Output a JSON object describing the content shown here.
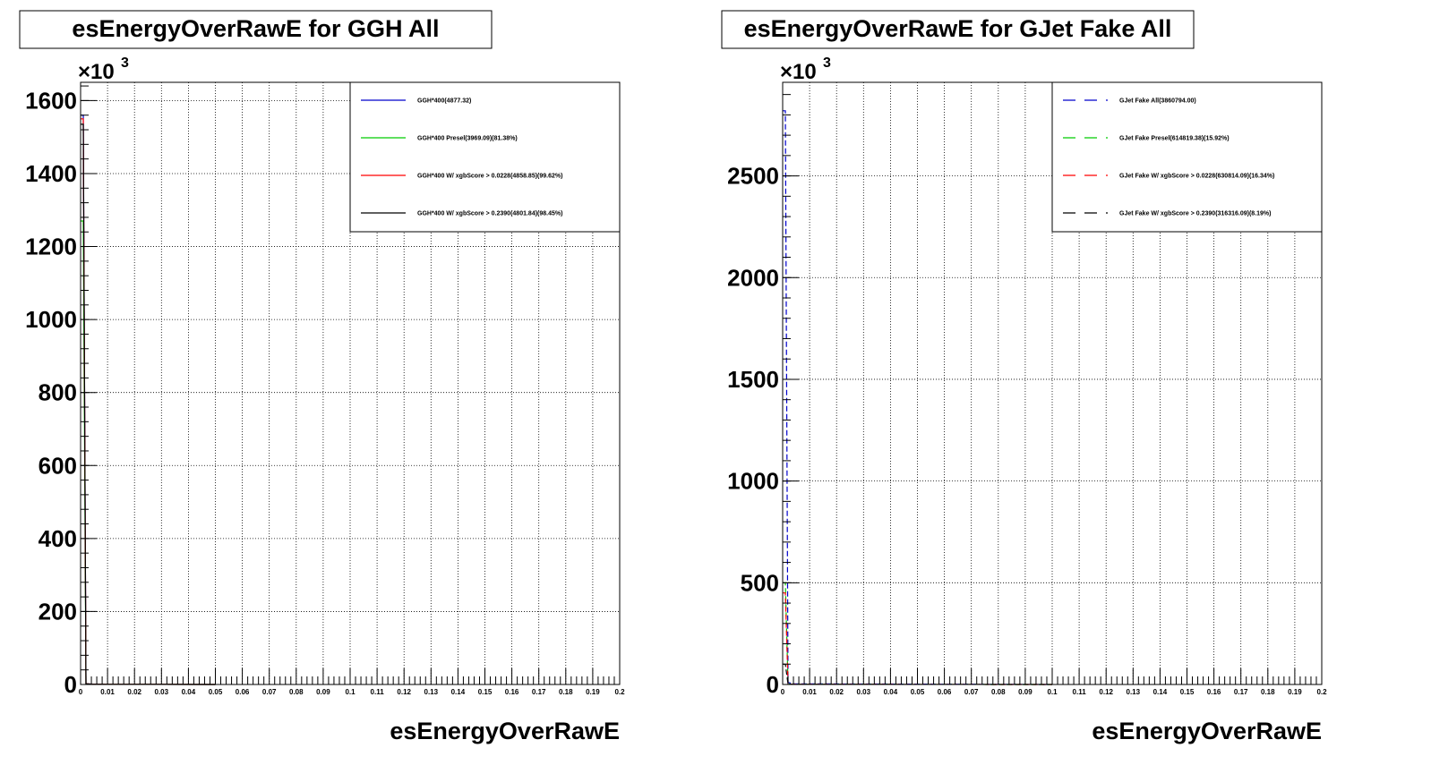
{
  "chart_data": [
    {
      "type": "line",
      "title": "esEnergyOverRawE for GGH All",
      "xlabel": "esEnergyOverRawE",
      "ylabel": "",
      "xlim": [
        0,
        0.2
      ],
      "ylim": [
        0,
        1650
      ],
      "y_multiplier": "×10",
      "y_multiplier_exp": "3",
      "grid": true,
      "legend_position": "top-right",
      "x_ticks": [
        0,
        0.01,
        0.02,
        0.03,
        0.04,
        0.05,
        0.06,
        0.07,
        0.08,
        0.09,
        0.1,
        0.11,
        0.12,
        0.13,
        0.14,
        0.15,
        0.16,
        0.17,
        0.18,
        0.19,
        0.2
      ],
      "x_tick_labels": [
        "0",
        "0.01",
        "0.02",
        "0.03",
        "0.04",
        "0.05",
        "0.06",
        "0.07",
        "0.08",
        "0.09",
        "0.1",
        "0.11",
        "0.12",
        "0.13",
        "0.14",
        "0.15",
        "0.16",
        "0.17",
        "0.18",
        "0.19",
        "0.2"
      ],
      "y_ticks": [
        0,
        200,
        400,
        600,
        800,
        1000,
        1200,
        1400,
        1600
      ],
      "y_tick_labels": [
        "0",
        "200",
        "400",
        "600",
        "800",
        "1000",
        "1200",
        "1400",
        "1600"
      ],
      "series": [
        {
          "name": "GGH*400(4877.32)",
          "color": "#0000cc",
          "dash": "solid",
          "x": [
            0,
            0.001,
            0.002,
            0.004,
            0.01,
            0.03,
            0.05
          ],
          "y": [
            1560,
            1560,
            2,
            1,
            0.5,
            0.2,
            0
          ]
        },
        {
          "name": "GGH*400 Presel(3969.09)(81.38%)",
          "color": "#00cc00",
          "dash": "solid",
          "x": [
            0,
            0.001,
            0.002,
            0.004,
            0.01,
            0.03,
            0.05
          ],
          "y": [
            1270,
            1270,
            1.5,
            0.8,
            0.4,
            0.2,
            0
          ]
        },
        {
          "name": "GGH*400 W/ xgbScore > 0.0228(4858.85)(99.62%)",
          "color": "#ff0000",
          "dash": "solid",
          "x": [
            0,
            0.001,
            0.002,
            0.004,
            0.01,
            0.03,
            0.05
          ],
          "y": [
            1550,
            1550,
            2,
            1,
            0.5,
            0.2,
            0
          ]
        },
        {
          "name": "GGH*400 W/ xgbScore > 0.2390(4801.84)(98.45%)",
          "color": "#000000",
          "dash": "solid",
          "x": [
            0,
            0.001,
            0.002,
            0.004,
            0.01,
            0.03,
            0.05
          ],
          "y": [
            1535,
            1535,
            2,
            1,
            0.5,
            0.2,
            0
          ]
        }
      ]
    },
    {
      "type": "line",
      "title": "esEnergyOverRawE for GJet Fake All",
      "xlabel": "esEnergyOverRawE",
      "ylabel": "",
      "xlim": [
        0,
        0.2
      ],
      "ylim": [
        0,
        2960
      ],
      "y_multiplier": "×10",
      "y_multiplier_exp": "3",
      "grid": true,
      "legend_position": "top-right",
      "x_ticks": [
        0,
        0.01,
        0.02,
        0.03,
        0.04,
        0.05,
        0.06,
        0.07,
        0.08,
        0.09,
        0.1,
        0.11,
        0.12,
        0.13,
        0.14,
        0.15,
        0.16,
        0.17,
        0.18,
        0.19,
        0.2
      ],
      "x_tick_labels": [
        "0",
        "0.01",
        "0.02",
        "0.03",
        "0.04",
        "0.05",
        "0.06",
        "0.07",
        "0.08",
        "0.09",
        "0.1",
        "0.11",
        "0.12",
        "0.13",
        "0.14",
        "0.15",
        "0.16",
        "0.17",
        "0.18",
        "0.19",
        "0.2"
      ],
      "y_ticks": [
        0,
        500,
        1000,
        1500,
        2000,
        2500
      ],
      "y_tick_labels": [
        "0",
        "500",
        "1000",
        "1500",
        "2000",
        "2500"
      ],
      "series": [
        {
          "name": "GJet Fake All(3860794.00)",
          "color": "#0000cc",
          "dash": "dashed",
          "x": [
            0,
            0.001,
            0.002,
            0.004,
            0.035,
            0.1
          ],
          "y": [
            2820,
            2820,
            10,
            3,
            2,
            0
          ]
        },
        {
          "name": "GJet Fake Presel(614819.38)(15.92%)",
          "color": "#00cc00",
          "dash": "dashed",
          "x": [
            0,
            0.001,
            0.002,
            0.004,
            0.035,
            0.1
          ],
          "y": [
            500,
            500,
            3,
            1,
            0.5,
            0
          ]
        },
        {
          "name": "GJet Fake W/ xgbScore > 0.0228(630814.09)(16.34%)",
          "color": "#ff0000",
          "dash": "dashed",
          "x": [
            0,
            0.001,
            0.002,
            0.004,
            0.035,
            0.1
          ],
          "y": [
            450,
            450,
            3,
            1,
            0.5,
            0
          ]
        },
        {
          "name": "GJet Fake W/ xgbScore > 0.2390(316316.09)(8.19%)",
          "color": "#000000",
          "dash": "dashed",
          "x": [
            0,
            0.001,
            0.002,
            0.004,
            0.035,
            0.1
          ],
          "y": [
            100,
            100,
            2,
            1,
            0.3,
            0
          ]
        }
      ]
    }
  ]
}
